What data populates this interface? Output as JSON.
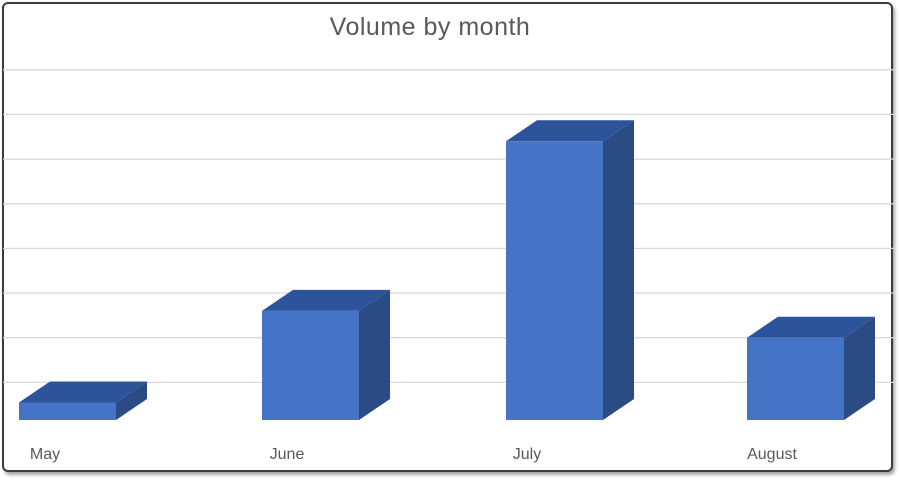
{
  "window": {
    "background": "#ffffff",
    "border_color": "#3b3b3b"
  },
  "chart_data": {
    "type": "bar",
    "projection": "3d-oblique-column",
    "title": "Volume by month",
    "categories": [
      "May",
      "June",
      "July",
      "August"
    ],
    "values": [
      0.55,
      2.6,
      6.4,
      2.0
    ],
    "value_note": "y-axis has no tick labels; values estimated in horizontal-gridline units",
    "xlabel": "",
    "ylabel": "",
    "ylim": [
      0,
      8
    ],
    "gridline_step": 1,
    "gridlines_visible": true,
    "y_tick_labels_visible": false,
    "legend": "none",
    "colors": {
      "bar_front": "#4573C5",
      "bar_top": "#2D549A",
      "bar_side": "#2B4B84",
      "gridline": "#D9D9D9",
      "text": "#595959"
    }
  }
}
